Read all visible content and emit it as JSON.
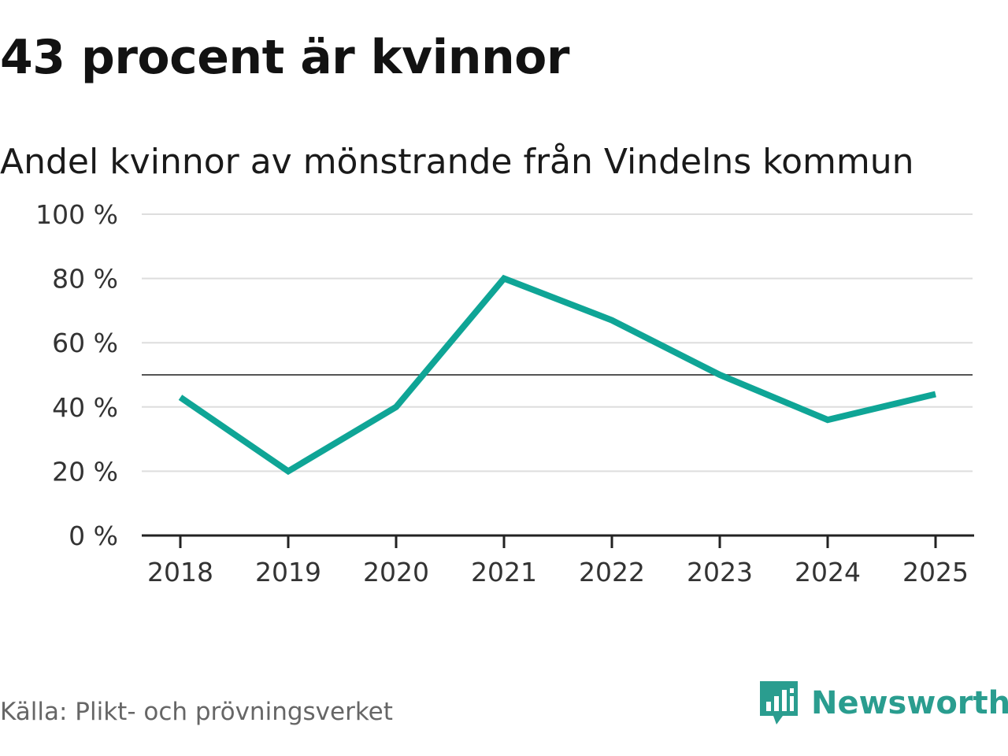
{
  "header": {
    "title": "43 procent är kvinnor",
    "subtitle": "Andel kvinnor av mönstrande från Vindelns kommun"
  },
  "footer": {
    "source": "Källa: Plikt- och prövningsverket",
    "brand": "Newsworthy"
  },
  "chart_data": {
    "type": "line",
    "x": [
      "2018",
      "2019",
      "2020",
      "2021",
      "2022",
      "2023",
      "2024",
      "2025"
    ],
    "series": [
      {
        "values": [
          43,
          20,
          40,
          80,
          67,
          50,
          36,
          44
        ],
        "color": "#0fa596"
      }
    ],
    "ylim": [
      0,
      100
    ],
    "yticks": [
      0,
      20,
      40,
      60,
      80,
      100
    ],
    "ytick_labels": [
      "0 %",
      "20 %",
      "40 %",
      "60 %",
      "80 %",
      "100 %"
    ],
    "reference_line": 50,
    "grid": true,
    "colors": {
      "grid": "#dddddd",
      "reference": "#555555",
      "axis": "#222222"
    }
  }
}
